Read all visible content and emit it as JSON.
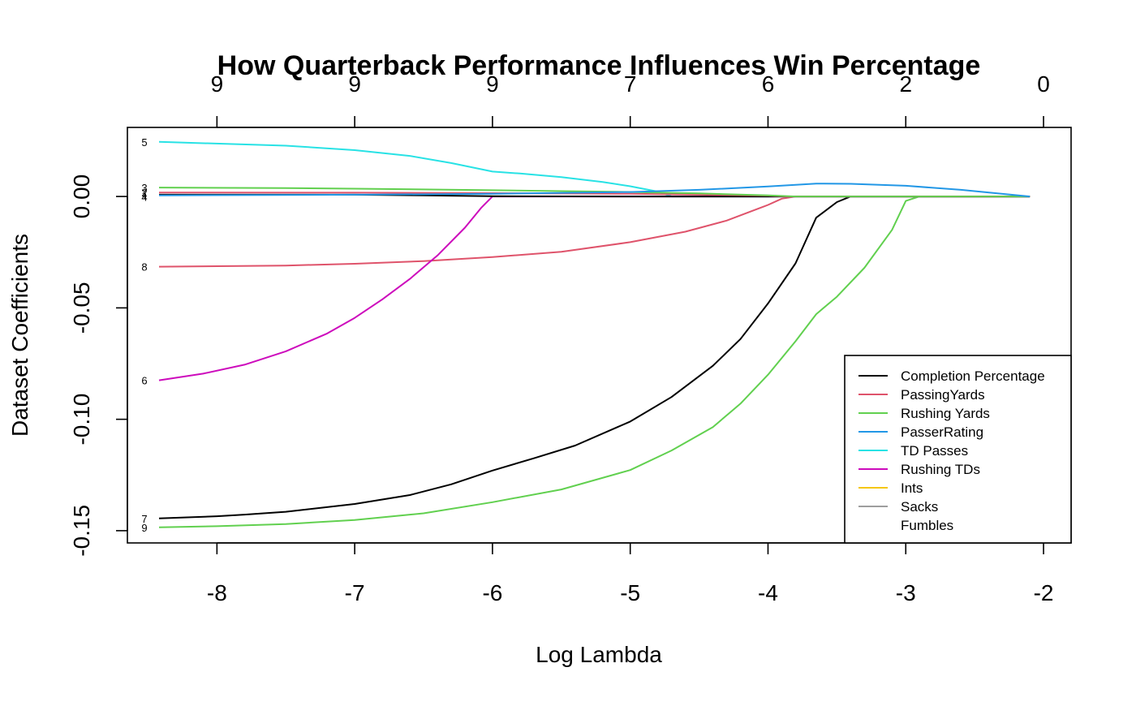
{
  "chart_data": {
    "type": "line",
    "title": "How Quarterback Performance Influences Win Percentage",
    "xlabel": "Log Lambda",
    "ylabel": "Dataset Coefficients",
    "xlim": [
      -8.65,
      -1.8
    ],
    "ylim": [
      -0.1555,
      0.031
    ],
    "x_ticks": [
      -8,
      -7,
      -6,
      -5,
      -4,
      -3,
      -2
    ],
    "y_ticks": [
      0.0,
      -0.05,
      -0.1,
      -0.15
    ],
    "y_tick_labels": [
      "0.00",
      "-0.05",
      "-0.10",
      "-0.15"
    ],
    "top_axis": {
      "positions": [
        -8,
        -7,
        -6,
        -5,
        -4,
        -3,
        -2
      ],
      "labels": [
        "9",
        "9",
        "9",
        "7",
        "6",
        "2",
        "0"
      ]
    },
    "grid": false,
    "legend_position": "bottom-right",
    "start_x": -8.42,
    "end_labels": [
      {
        "label": "5",
        "y": 0.0245
      },
      {
        "label": "3",
        "y": 0.004
      },
      {
        "label": "2",
        "y": 0.0018
      },
      {
        "label": "1",
        "y": 0.0006
      },
      {
        "label": "4",
        "y": -0.0002
      },
      {
        "label": "8",
        "y": -0.0315
      },
      {
        "label": "6",
        "y": -0.0825
      },
      {
        "label": "7",
        "y": -0.1445
      },
      {
        "label": "9",
        "y": -0.1485
      }
    ],
    "series": [
      {
        "name": "Completion Percentage",
        "color": "#000000",
        "x": [
          -8.42,
          -8.0,
          -7.8,
          -7.5,
          -7.0,
          -6.6,
          -6.3,
          -6.0,
          -5.7,
          -5.4,
          -5.0,
          -4.7,
          -4.4,
          -4.2,
          -4.0,
          -3.8,
          -3.65,
          -3.5,
          -3.4,
          -2.1
        ],
        "y": [
          -0.1445,
          -0.1435,
          -0.1428,
          -0.1415,
          -0.138,
          -0.134,
          -0.1292,
          -0.123,
          -0.1175,
          -0.1118,
          -0.101,
          -0.09,
          -0.076,
          -0.064,
          -0.048,
          -0.03,
          -0.0095,
          -0.0025,
          0.0,
          0.0
        ]
      },
      {
        "name": "PassingYards",
        "color": "#DF536B",
        "x": [
          -8.42,
          -7.5,
          -7.0,
          -6.5,
          -6.0,
          -5.5,
          -5.0,
          -4.6,
          -4.3,
          -4.0,
          -3.9,
          -3.8,
          -2.1
        ],
        "y": [
          -0.0315,
          -0.031,
          -0.0302,
          -0.029,
          -0.0272,
          -0.0248,
          -0.0205,
          -0.0158,
          -0.0108,
          -0.0038,
          -0.001,
          0.0,
          0.0
        ]
      },
      {
        "name": "Rushing Yards",
        "color": "#61D04F",
        "x": [
          -8.42,
          -8.0,
          -7.5,
          -7.0,
          -6.5,
          -6.0,
          -5.5,
          -5.0,
          -4.7,
          -4.4,
          -4.2,
          -4.0,
          -3.8,
          -3.65,
          -3.5,
          -3.3,
          -3.1,
          -3.0,
          -2.9,
          -2.1
        ],
        "y": [
          -0.1485,
          -0.148,
          -0.147,
          -0.1452,
          -0.1422,
          -0.1372,
          -0.1315,
          -0.1228,
          -0.114,
          -0.1035,
          -0.093,
          -0.08,
          -0.065,
          -0.0528,
          -0.045,
          -0.032,
          -0.015,
          -0.002,
          0.0,
          0.0
        ]
      },
      {
        "name": "PasserRating",
        "color": "#2297E6",
        "x": [
          -8.42,
          -7.0,
          -6.0,
          -5.0,
          -4.5,
          -4.0,
          -3.65,
          -3.4,
          -3.0,
          -2.6,
          -2.1
        ],
        "y": [
          0.0005,
          0.0008,
          0.0012,
          0.002,
          0.003,
          0.0045,
          0.0058,
          0.0057,
          0.0048,
          0.003,
          0.0
        ],
        "draw_order": 1
      },
      {
        "name": "TD Passes",
        "color": "#28E2E5",
        "x": [
          -8.42,
          -7.5,
          -7.0,
          -6.6,
          -6.3,
          -6.0,
          -5.8,
          -5.5,
          -5.2,
          -5.0,
          -4.8,
          -4.7,
          -2.1
        ],
        "y": [
          0.0245,
          0.0228,
          0.0208,
          0.0182,
          0.015,
          0.0112,
          0.0103,
          0.0087,
          0.0065,
          0.0046,
          0.0022,
          0.0,
          0.0
        ]
      },
      {
        "name": "Rushing TDs",
        "color": "#CD0BBC",
        "x": [
          -8.42,
          -8.1,
          -7.8,
          -7.5,
          -7.2,
          -7.0,
          -6.8,
          -6.6,
          -6.4,
          -6.2,
          -6.08,
          -6.0,
          -2.1
        ],
        "y": [
          -0.0825,
          -0.0795,
          -0.0755,
          -0.0695,
          -0.0615,
          -0.0545,
          -0.0462,
          -0.037,
          -0.0265,
          -0.014,
          -0.005,
          0.0,
          0.0
        ]
      },
      {
        "name": "Ints",
        "color": "#F5C710",
        "x": [
          -8.42,
          -2.1
        ],
        "y": [
          0.0,
          0.0
        ],
        "visible": false
      },
      {
        "name": "Sacks",
        "color": "#9E9E9E",
        "x": [
          -8.42,
          -2.1
        ],
        "y": [
          0.0,
          0.0
        ],
        "visible": false
      },
      {
        "name": "Fumbles",
        "color": "#FFFFFF",
        "x": [
          -8.42,
          -2.1
        ],
        "y": [
          0.0,
          0.0
        ],
        "visible": false
      },
      {
        "name": "",
        "color": "#000000",
        "legend": false,
        "x": [
          -8.42,
          -7.0,
          -6.5,
          -6.0,
          -5.0,
          -2.1
        ],
        "y": [
          0.0008,
          0.0008,
          0.0005,
          0.0001,
          0.0,
          0.0
        ]
      },
      {
        "name": "",
        "color": "#DF536B",
        "legend": false,
        "x": [
          -8.42,
          -7.0,
          -6.0,
          -5.0,
          -4.0,
          -3.85,
          -2.1
        ],
        "y": [
          0.0018,
          0.0017,
          0.0015,
          0.0012,
          0.0004,
          0.0,
          0.0
        ]
      },
      {
        "name": "",
        "color": "#61D04F",
        "legend": false,
        "x": [
          -8.42,
          -7.5,
          -7.0,
          -6.0,
          -5.0,
          -4.5,
          -4.0,
          -3.8,
          -2.1
        ],
        "y": [
          0.004,
          0.0038,
          0.0035,
          0.0028,
          0.002,
          0.0014,
          0.0005,
          0.0,
          0.0
        ]
      }
    ]
  }
}
